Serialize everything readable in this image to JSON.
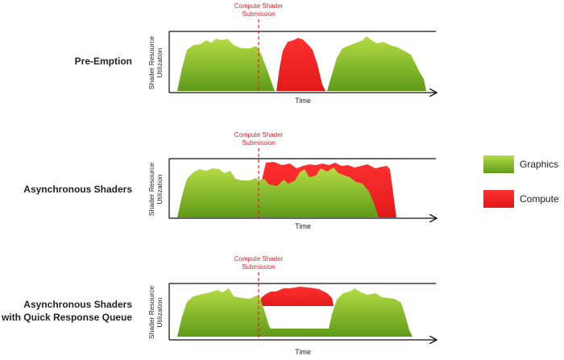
{
  "colors": {
    "graphics_light": "#a9d23b",
    "graphics_dark": "#5f9a1a",
    "compute_light": "#ff3b3b",
    "compute_dark": "#d81818",
    "marker": "#e8202a",
    "axis": "#111111"
  },
  "legend": [
    {
      "label": "Graphics",
      "color": "graphics"
    },
    {
      "label": "Compute",
      "color": "compute"
    }
  ],
  "panels": [
    {
      "title_lines": [
        "Pre-Emption"
      ],
      "ylabel_lines": [
        "Shader Resource",
        "Utilization"
      ],
      "xlabel": "Time",
      "marker_lines": [
        "Compute Shader",
        "Submission"
      ]
    },
    {
      "title_lines": [
        "Asynchronous Shaders"
      ],
      "ylabel_lines": [
        "Shader Resource",
        "Utilization"
      ],
      "xlabel": "Time",
      "marker_lines": [
        "Compute Shader",
        "Submission"
      ]
    },
    {
      "title_lines": [
        "Asynchronous Shaders",
        "with Quick Response Queue"
      ],
      "ylabel_lines": [
        "Shader Resource",
        "Utilization"
      ],
      "xlabel": "Time",
      "marker_lines": [
        "Compute Shader",
        "Submission"
      ]
    }
  ]
}
